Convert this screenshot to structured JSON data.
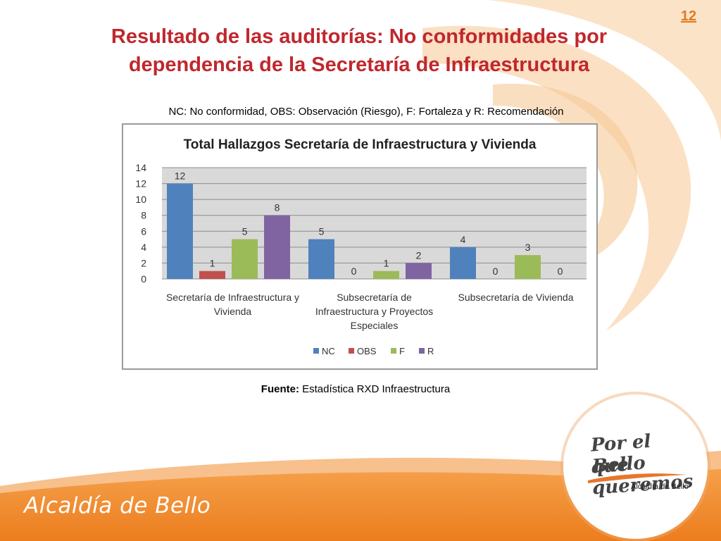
{
  "page_number": "12",
  "title": {
    "line1": "Resultado de las auditorías: No conformidades por",
    "line2": "dependencia de la Secretaría de Infraestructura"
  },
  "legend_note": "NC: No conformidad, OBS: Observación (Riesgo), F: Fortaleza y R: Recomendación",
  "source": {
    "label": "Fuente:",
    "text": " Estadística RXD Infraestructura"
  },
  "logo": {
    "line1": "Por el Bello",
    "line2": "que queremos",
    "subtitle": "Alcaldía de Bello"
  },
  "footer_brand": "Alcaldía de Bello",
  "colors": {
    "title": "#c0272d",
    "page_number": "#e07a1f",
    "footer_band": "#f08a2c"
  },
  "chart_data": {
    "type": "bar",
    "title": "Total Hallazgos Secretaría de Infraestructura y Vivienda",
    "categories": [
      [
        "Secretaría de Infraestructura y",
        "Vivienda"
      ],
      [
        "Subsecretaría de",
        "Infraestructura y Proyectos",
        "Especiales"
      ],
      [
        "Subsecretaría de Vivienda"
      ]
    ],
    "series": [
      {
        "name": "NC",
        "values": [
          12,
          5,
          4
        ],
        "color": "#4f81bd"
      },
      {
        "name": "OBS",
        "values": [
          1,
          0,
          0
        ],
        "color": "#c0504d"
      },
      {
        "name": "F",
        "values": [
          5,
          1,
          3
        ],
        "color": "#9bbb59"
      },
      {
        "name": "R",
        "values": [
          8,
          2,
          0
        ],
        "color": "#8064a2"
      }
    ],
    "ylim": [
      0,
      14
    ],
    "yticks": [
      0,
      2,
      4,
      6,
      8,
      10,
      12,
      14
    ],
    "grid": true,
    "legend_position": "bottom",
    "plot_background": "#d9d9d9"
  }
}
